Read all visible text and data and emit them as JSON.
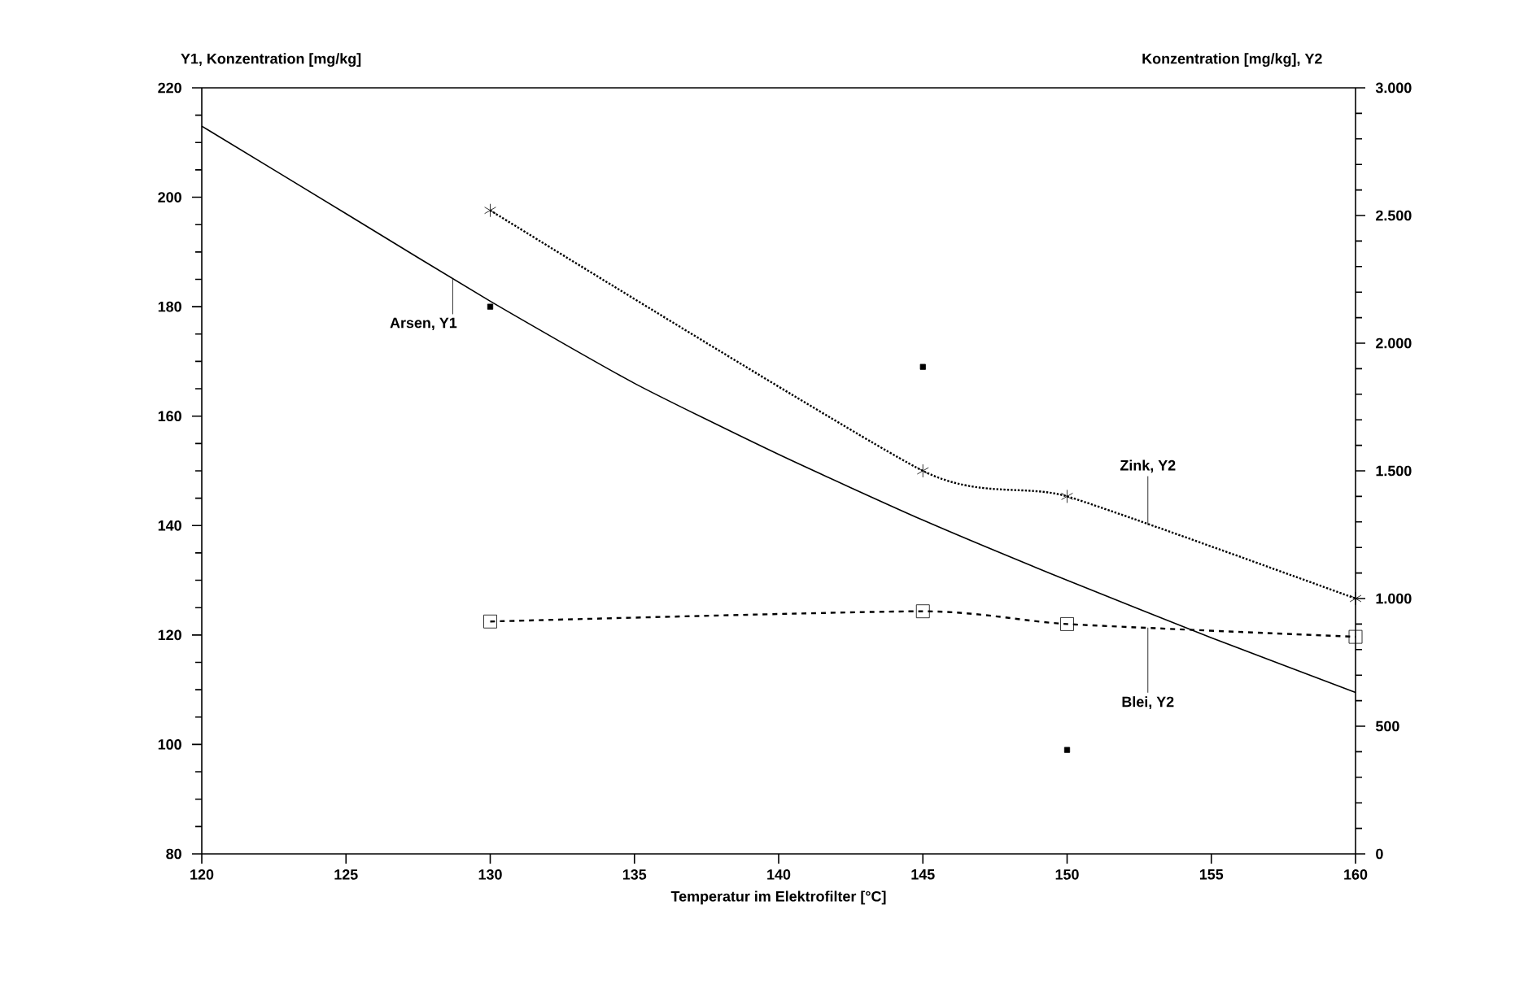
{
  "chart_data": {
    "type": "line",
    "xlabel": "Temperatur im Elektrofilter [°C]",
    "ylabel": "Y1, Konzentration [mg/kg]",
    "y2label": "Konzentration [mg/kg], Y2",
    "xlim": [
      120,
      160
    ],
    "xticks": [
      120,
      125,
      130,
      135,
      140,
      145,
      150,
      155,
      160
    ],
    "ylim": [
      80,
      220
    ],
    "yticks": [
      80,
      100,
      120,
      140,
      160,
      180,
      200,
      220
    ],
    "y2lim": [
      0,
      3000
    ],
    "y2ticks": [
      0,
      500,
      {
        "value": 1000,
        "label": "1.000"
      },
      {
        "value": 1500,
        "label": "1.500"
      },
      {
        "value": 2000,
        "label": "2.000"
      },
      {
        "value": 2500,
        "label": "2.500"
      },
      {
        "value": 3000,
        "label": "3.000"
      }
    ],
    "series": [
      {
        "name": "Arsen, Y1",
        "color": "#000000",
        "line_style": "solid",
        "marker": "none",
        "x": [
          120,
          125,
          130,
          135,
          140,
          145,
          150,
          155,
          160
        ],
        "values": [
          213,
          197,
          181,
          166,
          153,
          141,
          130,
          119.5,
          109.5
        ]
      },
      {
        "type": "scatter",
        "color": "#000000",
        "marker": "square",
        "x": [
          130,
          145,
          150
        ],
        "values": [
          180,
          169,
          99
        ]
      },
      {
        "name": "Zink, Y2",
        "axis": "y2",
        "color": "#000000",
        "line_style": "dotted",
        "marker": "cross",
        "x": [
          130,
          145,
          150,
          160
        ],
        "values": [
          2520,
          1500,
          1400,
          1000
        ]
      },
      {
        "name": "Blei, Y2",
        "axis": "y2",
        "color": "#000000",
        "line_style": "dashed",
        "marker": "square",
        "x": [
          130,
          145,
          150,
          160
        ],
        "values": [
          910,
          950,
          900,
          850
        ]
      }
    ]
  }
}
